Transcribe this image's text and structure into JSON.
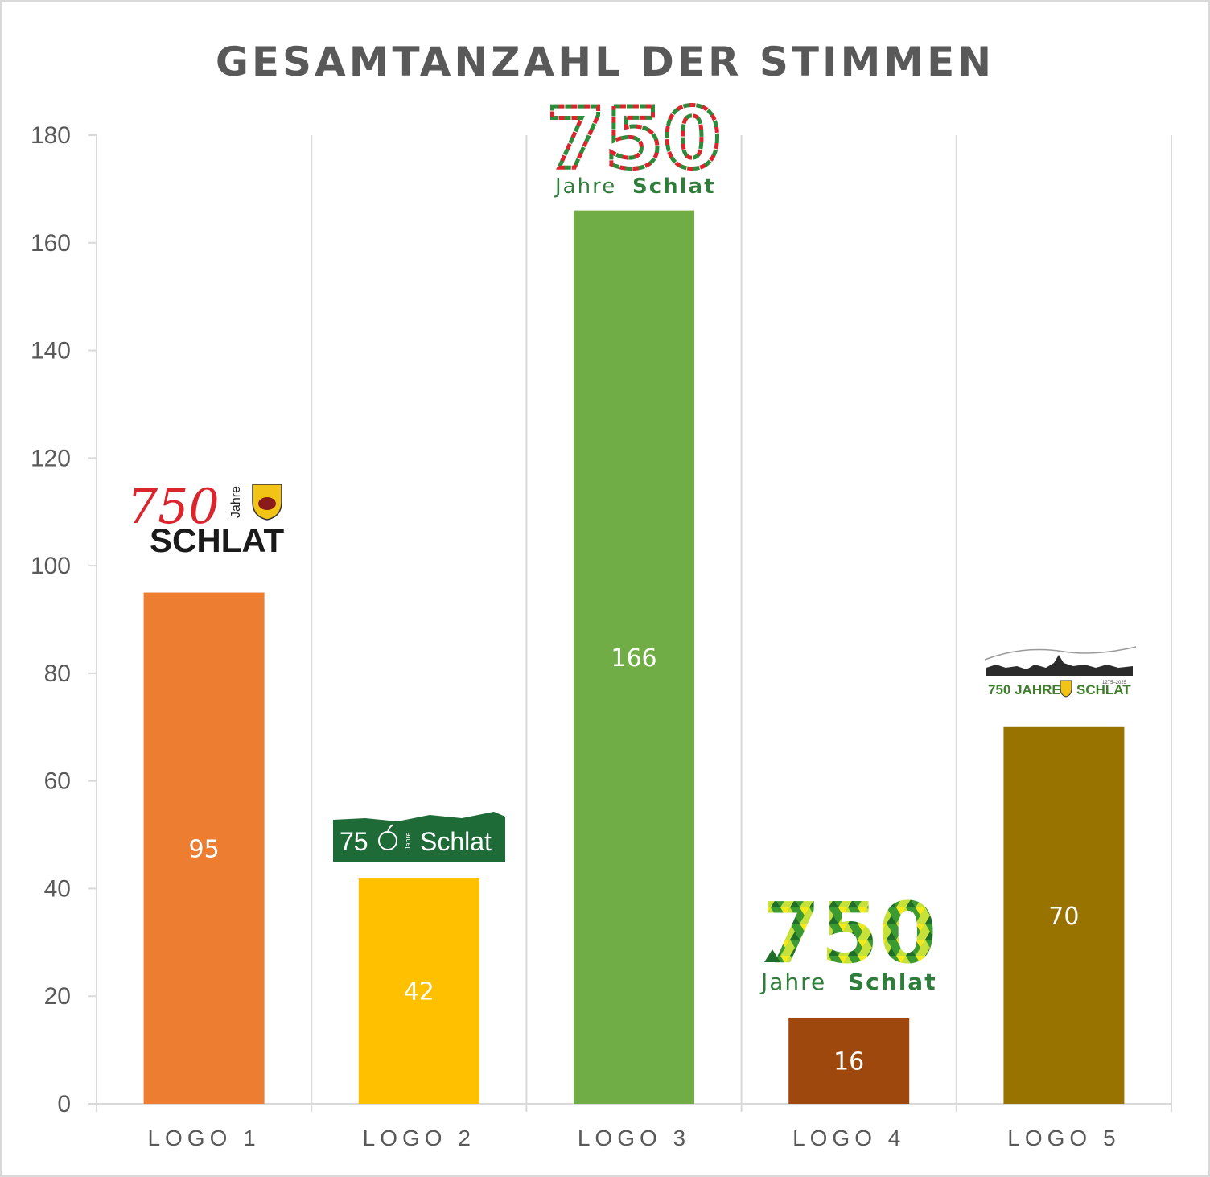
{
  "chart_data": {
    "type": "bar",
    "title": "GESAMTANZAHL DER STIMMEN",
    "categories": [
      "LOGO 1",
      "LOGO 2",
      "LOGO 3",
      "LOGO 4",
      "LOGO 5"
    ],
    "values": [
      95,
      42,
      166,
      16,
      70
    ],
    "colors": [
      "#ed7d31",
      "#ffc000",
      "#70ad47",
      "#9e480e",
      "#997300"
    ],
    "ylim": [
      0,
      180
    ],
    "yticks": [
      0,
      20,
      40,
      60,
      80,
      100,
      120,
      140,
      160,
      180
    ],
    "grid": "vertical separators between categories",
    "data_labels": true,
    "logos": [
      {
        "category": "LOGO 1",
        "number": "750",
        "small": "Jahre",
        "name": "SCHLAT",
        "icon": "coat-of-arms-icon"
      },
      {
        "category": "LOGO 2",
        "number": "75",
        "small": "Jahre",
        "name": "Schlat",
        "icon": "apple-icon"
      },
      {
        "category": "LOGO 3",
        "number": "750",
        "small": "Jahre",
        "name": "Schlat",
        "icon": "apple-mosaic-icon"
      },
      {
        "category": "LOGO 4",
        "number": "750",
        "small": "Jahre",
        "name": "Schlat",
        "icon": "triangle-mosaic-icon"
      },
      {
        "category": "LOGO 5",
        "number": "750 JAHRE",
        "small": "1275–2025",
        "name": "SCHLAT",
        "icon": "village-skyline-icon"
      }
    ]
  }
}
